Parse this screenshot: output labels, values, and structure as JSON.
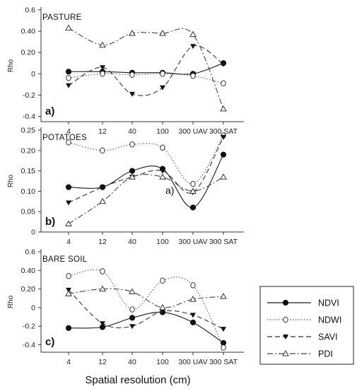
{
  "chart_data": [
    {
      "type": "line",
      "title": "PASTURE",
      "panel_label": "a)",
      "ylabel": "Rho",
      "categories": [
        "4",
        "12",
        "40",
        "100",
        "300 UAV",
        "300 SAT"
      ],
      "ylim": [
        -0.45,
        0.6
      ],
      "yticks": [
        0.6,
        0.4,
        0.2,
        0,
        -0.2,
        -0.4
      ],
      "ytick_labels": [
        "0.6",
        "0.40",
        "0.20",
        "0",
        "-0.2",
        "-0.4"
      ],
      "series": [
        {
          "name": "NDVI",
          "values": [
            0.02,
            0.02,
            0.01,
            0.01,
            0.0,
            0.1
          ]
        },
        {
          "name": "NDWI",
          "values": [
            -0.04,
            0.0,
            -0.01,
            0.0,
            -0.02,
            -0.09
          ]
        },
        {
          "name": "SAVI",
          "values": [
            -0.11,
            0.06,
            -0.19,
            -0.13,
            0.26,
            0.09
          ]
        },
        {
          "name": "PDI",
          "values": [
            0.43,
            0.27,
            0.38,
            0.38,
            0.37,
            -0.33
          ]
        }
      ]
    },
    {
      "type": "line",
      "title": "POTATOES",
      "panel_label": "b)",
      "ylabel": "Rho",
      "annotation": "a)",
      "categories": [
        "4",
        "12",
        "40",
        "100",
        "300 UAV",
        "300 SAT"
      ],
      "ylim": [
        0,
        0.25
      ],
      "yticks": [
        0.25,
        0.2,
        0.15,
        0.1,
        0.05,
        0
      ],
      "ytick_labels": [
        "0.25",
        "0.20",
        "0.15",
        "0.10",
        "0.05",
        "0"
      ],
      "series": [
        {
          "name": "NDVI",
          "values": [
            0.11,
            0.11,
            0.15,
            0.155,
            0.06,
            0.19
          ]
        },
        {
          "name": "NDWI",
          "values": [
            0.22,
            0.2,
            0.215,
            0.207,
            0.118,
            0.237
          ]
        },
        {
          "name": "SAVI",
          "values": [
            0.072,
            0.11,
            0.135,
            0.15,
            0.097,
            0.233
          ]
        },
        {
          "name": "PDI",
          "values": [
            0.02,
            0.075,
            0.135,
            0.135,
            0.1,
            0.135
          ]
        }
      ]
    },
    {
      "type": "line",
      "title": "BARE SOIL",
      "panel_label": "c)",
      "ylabel": "Rho",
      "categories": [
        "4",
        "12",
        "40",
        "100",
        "300 UAV",
        "300 SAT"
      ],
      "ylim": [
        -0.48,
        0.6
      ],
      "yticks": [
        0.6,
        0.4,
        0.2,
        0,
        -0.2,
        -0.4
      ],
      "ytick_labels": [
        "0.6",
        "0.40",
        "0.20",
        "0",
        "-0.2",
        "-0.4"
      ],
      "series": [
        {
          "name": "NDVI",
          "values": [
            -0.22,
            -0.21,
            -0.11,
            -0.05,
            -0.16,
            -0.38
          ]
        },
        {
          "name": "NDWI",
          "values": [
            0.34,
            0.39,
            -0.02,
            0.29,
            0.24,
            -0.43
          ]
        },
        {
          "name": "SAVI",
          "values": [
            0.19,
            -0.17,
            -0.2,
            -0.04,
            -0.08,
            -0.23
          ]
        },
        {
          "name": "PDI",
          "values": [
            0.15,
            0.2,
            0.17,
            0.0,
            0.09,
            0.12
          ]
        }
      ]
    }
  ],
  "xlabel": "Spatial resolution (cm)",
  "legend": {
    "placement": "bottom-right",
    "entries": [
      "NDVI",
      "NDWI",
      "SAVI",
      "PDI"
    ]
  },
  "series_styles": {
    "NDVI": {
      "color": "#1a1a1a",
      "dash": "solid",
      "marker": "filled-circle"
    },
    "NDWI": {
      "color": "#555555",
      "dash": "dotted",
      "marker": "open-circle"
    },
    "SAVI": {
      "color": "#333333",
      "dash": "dashed",
      "marker": "filled-triangle-down"
    },
    "PDI": {
      "color": "#444444",
      "dash": "dash-dot",
      "marker": "open-triangle-up"
    }
  }
}
